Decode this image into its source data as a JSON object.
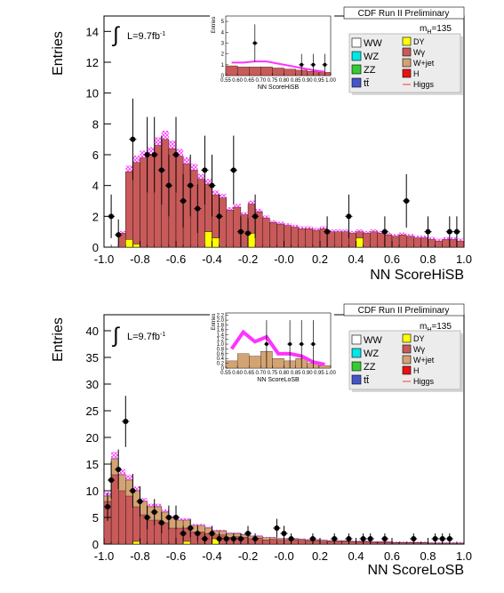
{
  "chart_data": [
    {
      "type": "bar",
      "panel": "upper",
      "xlabel": "NN ScoreHiSB",
      "ylabel": "Entries",
      "xlim": [
        -1.0,
        1.0
      ],
      "ylim": [
        0,
        15
      ],
      "xticks": [
        "-1.0",
        "-0.8",
        "-0.6",
        "-0.4",
        "-0.2",
        "-0.0",
        "0.2",
        "0.4",
        "0.6",
        "0.8",
        "1.0"
      ],
      "yticks": [
        "0",
        "2",
        "4",
        "6",
        "8",
        "10",
        "12",
        "14"
      ],
      "header": "CDF Run II Preliminary",
      "lumi": "L=9.7fb",
      "lumi_sup": "-1",
      "mass_label": "m",
      "mass_sub": "H",
      "mass_value": "=135",
      "legend_left": [
        "WW",
        "WZ",
        "ZZ",
        "tt̄"
      ],
      "legend_right": [
        "DY",
        "Wγ",
        "W+jet",
        "H",
        "Higgs"
      ],
      "colors": {
        "bkg": "#c85a5a",
        "wjet": "#d4a373",
        "dy": "#ffff00",
        "higgs": "#ff33ff"
      },
      "bin_width": 0.04,
      "bins_x": [
        -0.92,
        -0.88,
        -0.84,
        -0.8,
        -0.76,
        -0.72,
        -0.68,
        -0.64,
        -0.6,
        -0.56,
        -0.52,
        -0.48,
        -0.44,
        -0.4,
        -0.36,
        -0.32,
        -0.28,
        -0.24,
        -0.2,
        -0.16,
        -0.12,
        -0.08,
        -0.04,
        0.0,
        0.04,
        0.08,
        0.12,
        0.16,
        0.2,
        0.24,
        0.28,
        0.32,
        0.36,
        0.4,
        0.44,
        0.48,
        0.52,
        0.56,
        0.6,
        0.64,
        0.68,
        0.72,
        0.76,
        0.8,
        0.84,
        0.88,
        0.92,
        0.96
      ],
      "bkg_total": [
        0.9,
        4.9,
        5.5,
        5.8,
        6.0,
        6.6,
        7.0,
        6.4,
        5.9,
        5.4,
        5.0,
        4.4,
        4.1,
        3.4,
        3.2,
        2.4,
        2.6,
        2.1,
        2.8,
        2.3,
        1.9,
        1.6,
        1.5,
        1.4,
        1.3,
        1.2,
        1.2,
        1.1,
        1.2,
        1.0,
        1.0,
        1.0,
        0.9,
        1.0,
        0.9,
        1.0,
        0.9,
        0.8,
        0.7,
        0.8,
        0.7,
        0.6,
        0.6,
        0.5,
        0.4,
        0.5,
        0.5,
        0.4
      ],
      "dy": [
        0,
        0.5,
        0.2,
        0,
        0,
        0,
        0,
        0,
        0,
        0,
        0,
        0,
        1.0,
        0.6,
        0,
        0,
        0,
        0,
        0.9,
        0,
        0,
        0,
        0,
        0,
        0,
        0,
        0,
        0,
        0,
        0,
        0,
        0,
        0,
        0.6,
        0,
        0,
        0,
        0,
        0,
        0,
        0,
        0,
        0,
        0,
        0,
        0,
        0,
        0
      ],
      "data_x": [
        -0.96,
        -0.92,
        -0.84,
        -0.76,
        -0.72,
        -0.68,
        -0.64,
        -0.6,
        -0.56,
        -0.52,
        -0.48,
        -0.44,
        -0.4,
        -0.36,
        -0.28,
        -0.24,
        -0.2,
        -0.16,
        0.24,
        0.36,
        0.56,
        0.68,
        0.8,
        0.92,
        0.96
      ],
      "data_y": [
        2,
        0.8,
        7,
        6,
        6,
        5,
        4,
        6,
        3,
        4,
        2.5,
        5,
        4,
        2,
        5,
        1,
        0.9,
        2,
        1,
        2,
        1,
        3,
        1,
        1,
        1
      ],
      "inset": {
        "xlabel": "NN ScoreHiSB",
        "ylabel": "Entries",
        "xlim": [
          0.55,
          1.0
        ],
        "ylim": [
          0,
          5.5
        ],
        "xticks": [
          "0.55",
          "0.60",
          "0.65",
          "0.70",
          "0.75",
          "0.80",
          "0.85",
          "0.90",
          "0.95",
          "1.00"
        ],
        "yticks": [
          "0",
          "1",
          "2",
          "3",
          "4",
          "5"
        ],
        "bins_x": [
          0.55,
          0.6,
          0.65,
          0.7,
          0.75,
          0.8,
          0.85,
          0.9,
          0.95
        ],
        "bkg_total": [
          0.9,
          0.8,
          0.8,
          0.8,
          0.7,
          0.6,
          0.5,
          0.4,
          0.3
        ],
        "higgs": [
          0.3,
          0.4,
          0.5,
          0.5,
          0.4,
          0.3,
          0.2,
          0.1,
          0.05
        ],
        "data_x": [
          0.675,
          0.875,
          0.925,
          0.975
        ],
        "data_y": [
          3,
          1,
          1,
          1
        ]
      }
    },
    {
      "type": "bar",
      "panel": "lower",
      "xlabel": "NN ScoreLoSB",
      "ylabel": "Entries",
      "xlim": [
        -1.0,
        1.0
      ],
      "ylim": [
        0,
        43
      ],
      "xticks": [
        "-1.0",
        "-0.8",
        "-0.6",
        "-0.4",
        "-0.2",
        "-0.0",
        "0.2",
        "0.4",
        "0.6",
        "0.8",
        "1.0"
      ],
      "yticks": [
        "0",
        "5",
        "10",
        "15",
        "20",
        "25",
        "30",
        "35",
        "40"
      ],
      "header": "CDF Run II Preliminary",
      "lumi": "L=9.7fb",
      "lumi_sup": "-1",
      "mass_label": "m",
      "mass_sub": "H",
      "mass_value": "=135",
      "legend_left": [
        "WW",
        "WZ",
        "ZZ",
        "tt̄"
      ],
      "legend_right": [
        "DY",
        "Wγ",
        "W+jet",
        "H",
        "Higgs"
      ],
      "colors": {
        "bkg": "#c85a5a",
        "wjet": "#d4a373",
        "dy": "#ffff00",
        "higgs": "#ff33ff"
      },
      "bin_width": 0.04,
      "bins_x": [
        -1.0,
        -0.96,
        -0.92,
        -0.88,
        -0.84,
        -0.8,
        -0.76,
        -0.72,
        -0.68,
        -0.64,
        -0.6,
        -0.56,
        -0.52,
        -0.48,
        -0.44,
        -0.4,
        -0.36,
        -0.32,
        -0.28,
        -0.24,
        -0.2,
        -0.16,
        -0.12,
        -0.08,
        -0.04,
        0.0,
        0.04,
        0.08,
        0.12,
        0.16,
        0.2,
        0.24,
        0.28,
        0.32,
        0.36,
        0.4,
        0.44,
        0.48,
        0.52,
        0.56,
        0.6,
        0.64,
        0.68,
        0.72,
        0.76,
        0.8,
        0.84,
        0.88,
        0.92,
        0.96
      ],
      "bkg_total": [
        9,
        16,
        13,
        12,
        10,
        8,
        7,
        7,
        6,
        5,
        4.5,
        4.5,
        3.5,
        3.5,
        3,
        2.5,
        2.5,
        2,
        2,
        1.8,
        1.5,
        1.5,
        1.2,
        1.2,
        1,
        1,
        1,
        0.9,
        0.8,
        0.8,
        0.7,
        0.6,
        0.6,
        0.6,
        0.5,
        0.5,
        0.5,
        0.4,
        0.4,
        0.4,
        0.3,
        0.3,
        0.3,
        0.3,
        0.3,
        0.2,
        0.2,
        0.2,
        0.2,
        0.2
      ],
      "wjet": [
        1,
        3,
        3,
        3,
        3,
        2.5,
        2.5,
        2.5,
        2,
        2,
        1.5,
        1.5,
        1.2,
        1.2,
        1,
        0.8,
        0.8,
        0.7,
        0.6,
        0.5,
        0.5,
        0.4,
        0.4,
        0.3,
        0.3,
        0.3,
        0.2,
        0.2,
        0.2,
        0.2,
        0.2,
        0.1,
        0.1,
        0.1,
        0.1,
        0.1,
        0.1,
        0.1,
        0.1,
        0.1,
        0.1,
        0.1,
        0.1,
        0.1,
        0.1,
        0.1,
        0.1,
        0.1,
        0.1,
        0.1
      ],
      "dy": [
        0,
        0,
        0,
        0,
        0.5,
        0,
        0,
        0,
        0,
        0,
        0,
        0.5,
        0,
        0,
        0,
        1.0,
        0,
        0,
        0,
        0,
        0,
        0,
        0,
        0,
        0,
        0,
        0,
        0,
        0,
        0,
        0,
        0,
        0,
        0,
        0,
        0,
        0,
        0,
        0,
        0,
        0,
        0,
        0,
        0,
        0,
        0,
        0,
        0,
        0,
        0
      ],
      "data_x": [
        -0.98,
        -0.96,
        -0.92,
        -0.88,
        -0.84,
        -0.8,
        -0.76,
        -0.72,
        -0.68,
        -0.64,
        -0.6,
        -0.56,
        -0.52,
        -0.48,
        -0.44,
        -0.4,
        -0.36,
        -0.32,
        -0.28,
        -0.24,
        -0.2,
        -0.16,
        -0.04,
        0.0,
        0.04,
        0.16,
        0.28,
        0.36,
        0.44,
        0.48,
        0.56,
        0.72,
        0.84,
        0.88,
        0.92
      ],
      "data_y": [
        7,
        12,
        14,
        23,
        10,
        8,
        5,
        6,
        4,
        5,
        5,
        2,
        3,
        2,
        1,
        2,
        1,
        1,
        1,
        1,
        2,
        1,
        3,
        2,
        1,
        1,
        1,
        1,
        1,
        1,
        1,
        1,
        1,
        1,
        1
      ],
      "inset": {
        "xlabel": "NN ScoreLoSB",
        "ylabel": "Entries",
        "xlim": [
          0.55,
          1.0
        ],
        "ylim": [
          0,
          2.3
        ],
        "xticks": [
          "0.55",
          "0.60",
          "0.65",
          "0.70",
          "0.75",
          "0.80",
          "0.85",
          "0.90",
          "0.95",
          "1.00"
        ],
        "yticks": [
          "0",
          "0.2",
          "0.4",
          "0.6",
          "0.8",
          "1.0",
          "1.2",
          "1.4",
          "1.6",
          "1.8",
          "2.0",
          "2.2"
        ],
        "bins_x": [
          0.55,
          0.6,
          0.65,
          0.7,
          0.75,
          0.8,
          0.85,
          0.9,
          0.95
        ],
        "bkg_total": [
          0.3,
          0.6,
          0.5,
          0.7,
          0.4,
          0.3,
          0.4,
          0.2,
          0.1
        ],
        "higgs": [
          0.5,
          0.9,
          0.6,
          0.6,
          0.2,
          0.3,
          0.1,
          0.05,
          0.05
        ],
        "data_x": [
          0.725,
          0.825,
          0.875,
          0.925
        ],
        "data_y": [
          1,
          1,
          1,
          1
        ]
      }
    }
  ]
}
